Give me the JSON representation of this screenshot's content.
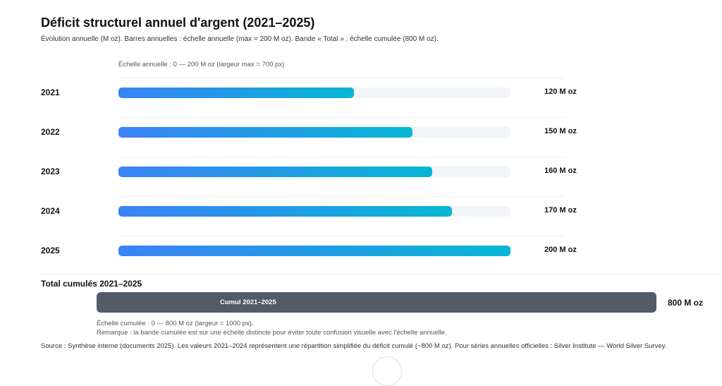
{
  "chart_data": {
    "type": "bar",
    "orientation": "horizontal",
    "title": "Déficit structurel annuel d'argent (2021–2025)",
    "subtitle": "Évolution annuelle (M oz). Barres annuelles : échelle annuelle (max = 200 M oz). Bande « Total » : échelle cumulée (800 M oz).",
    "scale_note": "Échelle annuelle : 0 — 200 M oz (largeur max = 700 px)",
    "categories": [
      "2021",
      "2022",
      "2023",
      "2024",
      "2025"
    ],
    "values": [
      120,
      150,
      160,
      170,
      200
    ],
    "value_labels": [
      "120 M oz",
      "150 M oz",
      "160 M oz",
      "170 M oz",
      "200 M oz"
    ],
    "xlim": [
      0,
      200
    ],
    "colors": {
      "gradient_start": "#3b82f6",
      "gradient_end": "#06b6d4",
      "track": "#f1f4f8",
      "total": "#525c68"
    },
    "total": {
      "title": "Total cumulés 2021–2025",
      "label": "Cumul 2021–2025",
      "value": 800,
      "value_label": "800 M oz",
      "xlim": [
        0,
        800
      ],
      "note1": "Échelle cumulée : 0 — 800 M oz (largeur = 1000 px).",
      "note2": "Remarque : la bande cumulée est sur une échelle distincte pour éviter toute confusion visuelle avec l'échelle annuelle."
    },
    "source": "Source : Synthèse interne (documents 2025). Les valeurs 2021–2024 représentent une répartition simplifiée du déficit cumulé (~800 M oz). Pour séries annuelles officielles : Silver Institute — World Silver Survey."
  }
}
